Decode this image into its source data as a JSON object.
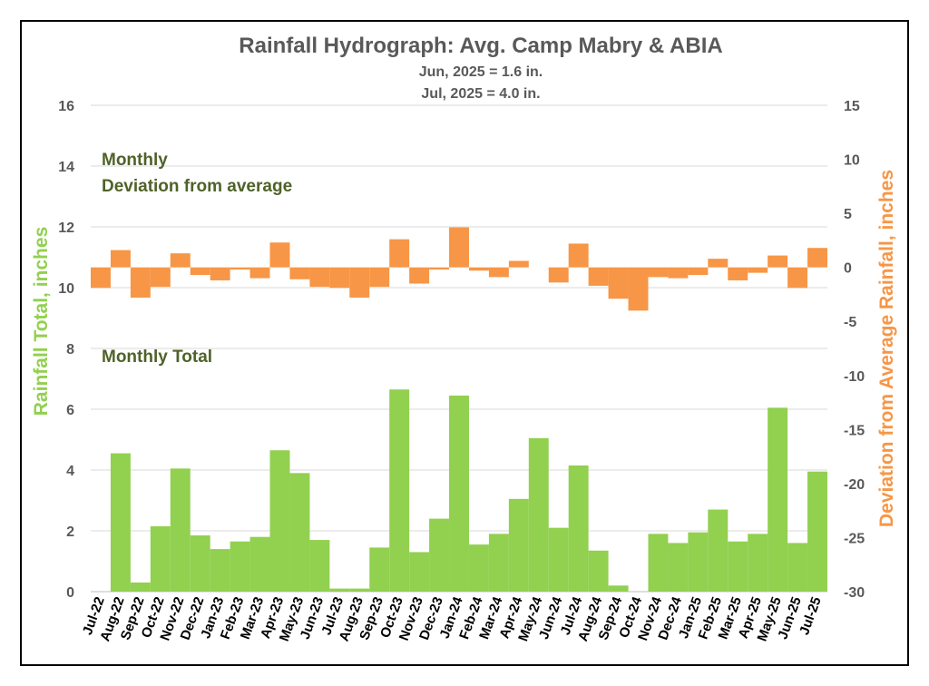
{
  "chart_data": {
    "type": "bar",
    "title": "Rainfall Hydrograph: Avg. Camp Mabry & ABIA",
    "subtitle_lines": [
      "Jun, 2025 = 1.6 in.",
      "Jul, 2025 = 4.0 in."
    ],
    "ylabel_left": "Rainfall Total, inches",
    "ylabel_right": "Deviation from Average Rainfall, inches",
    "ylim_left": [
      0,
      16
    ],
    "ylim_right": [
      -30,
      15
    ],
    "yticks_left": [
      0,
      2,
      4,
      6,
      8,
      10,
      12,
      14,
      16
    ],
    "yticks_right": [
      -30,
      -25,
      -20,
      -15,
      -10,
      -5,
      0,
      5,
      10,
      15
    ],
    "grid": true,
    "annotations": {
      "monthly": "Monthly",
      "deviation": "Deviation from average",
      "total": "Monthly Total"
    },
    "colors": {
      "total": "#92d050",
      "deviation": "#f79646",
      "ylabel_left": "#92d050",
      "ylabel_right": "#f79646",
      "annotation": "#4f6228"
    },
    "categories": [
      "Jul-22",
      "Aug-22",
      "Sep-22",
      "Oct-22",
      "Nov-22",
      "Dec-22",
      "Jan-23",
      "Feb-23",
      "Mar-23",
      "Apr-23",
      "May-23",
      "Jun-23",
      "Jul-23",
      "Aug-23",
      "Sep-23",
      "Oct-23",
      "Nov-23",
      "Dec-23",
      "Jan-24",
      "Feb-24",
      "Mar-24",
      "Apr-24",
      "May-24",
      "Jun-24",
      "Jul-24",
      "Aug-24",
      "Sep-24",
      "Oct-24",
      "Nov-24",
      "Dec-24",
      "Jan-25",
      "Feb-25",
      "Mar-25",
      "Apr-25",
      "May-25",
      "Jun-25",
      "Jul-25"
    ],
    "series": [
      {
        "name": "Monthly Total",
        "axis": "left",
        "values": [
          0.0,
          4.55,
          0.3,
          2.15,
          4.05,
          1.85,
          1.4,
          1.65,
          1.8,
          4.65,
          3.9,
          1.7,
          0.1,
          0.1,
          1.45,
          6.65,
          1.3,
          2.4,
          6.45,
          1.55,
          1.9,
          3.05,
          5.05,
          2.1,
          4.15,
          1.35,
          0.2,
          0.0,
          1.9,
          1.6,
          1.95,
          2.7,
          1.65,
          1.9,
          6.05,
          1.6,
          3.95
        ]
      },
      {
        "name": "Deviation from average",
        "axis": "right",
        "values": [
          -1.9,
          1.6,
          -2.8,
          -1.8,
          1.3,
          -0.7,
          -1.2,
          -0.2,
          -1.0,
          2.3,
          -1.1,
          -1.8,
          -1.9,
          -2.8,
          -1.8,
          2.6,
          -1.5,
          -0.2,
          3.7,
          -0.3,
          -0.9,
          0.6,
          0.0,
          -1.4,
          2.2,
          -1.7,
          -2.9,
          -4.0,
          -0.9,
          -1.0,
          -0.7,
          0.8,
          -1.2,
          -0.5,
          1.1,
          -1.9,
          1.8
        ]
      }
    ]
  }
}
